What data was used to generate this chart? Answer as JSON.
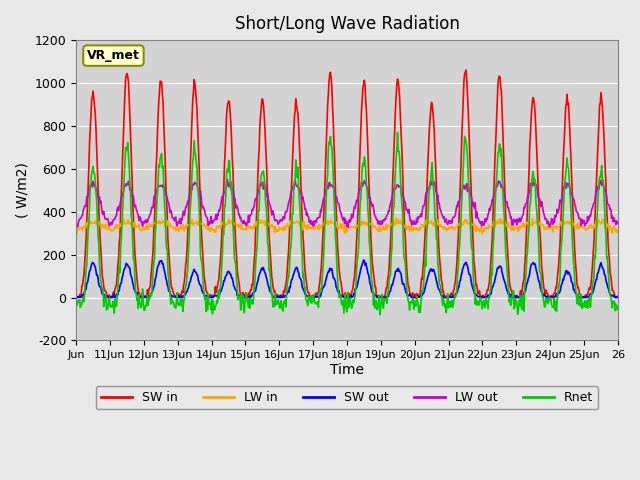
{
  "title": "Short/Long Wave Radiation",
  "ylabel": "( W/m2)",
  "xlabel": "Time",
  "annotation": "VR_met",
  "ylim": [
    -200,
    1200
  ],
  "yticks": [
    -200,
    0,
    200,
    400,
    600,
    800,
    1000,
    1200
  ],
  "x_tick_positions": [
    0,
    1,
    2,
    3,
    4,
    5,
    6,
    7,
    8,
    9,
    10,
    11,
    12,
    13,
    14,
    15,
    16
  ],
  "x_labels": [
    "Jun",
    "11Jun",
    "12Jun",
    "13Jun",
    "14Jun",
    "15Jun",
    "16Jun",
    "17Jun",
    "18Jun",
    "19Jun",
    "20Jun",
    "21Jun",
    "22Jun",
    "23Jun",
    "24Jun",
    "25Jun",
    "26"
  ],
  "colors": {
    "SW in": "#ff0000",
    "LW in": "#ffa500",
    "SW out": "#0000ff",
    "LW out": "#cc00cc",
    "Rnet": "#00cc00"
  },
  "legend_labels": [
    "SW in",
    "LW in",
    "SW out",
    "LW out",
    "Rnet"
  ],
  "bg_color": "#e8e8e8",
  "plot_bg_color": "#d3d3d3",
  "n_days": 16,
  "pts_per_day": 48
}
